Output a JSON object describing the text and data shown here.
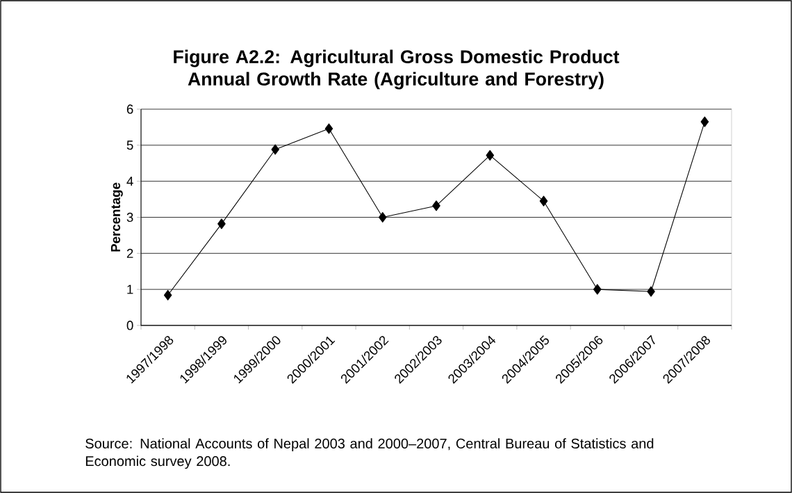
{
  "chart_data": {
    "type": "line",
    "title": "Figure A2.2: Agricultural Gross Domestic Product Annual Growth Rate (Agriculture and Forestry)",
    "ylabel": "Percentage",
    "categories": [
      "1997/1998",
      "1998/1999",
      "1999/2000",
      "2000/2001",
      "2001/2002",
      "2002/2003",
      "2003/2004",
      "2004/2005",
      "2005/2006",
      "2006/2007",
      "2007/2008"
    ],
    "series": [
      {
        "color": "#000000",
        "values": [
          0.84,
          2.82,
          4.88,
          5.46,
          3.0,
          3.32,
          4.72,
          3.45,
          1.0,
          0.94,
          5.65
        ]
      }
    ],
    "ylim": [
      0,
      6
    ],
    "yticks": [
      0,
      1,
      2,
      3,
      4,
      5,
      6
    ],
    "grid": "y",
    "marker": "diamond",
    "line_style": "solid",
    "annotations": [
      "Source: National Accounts of Nepal 2003 and 2000–2007, Central Bureau of Statistics and Economic survey 2008."
    ]
  }
}
